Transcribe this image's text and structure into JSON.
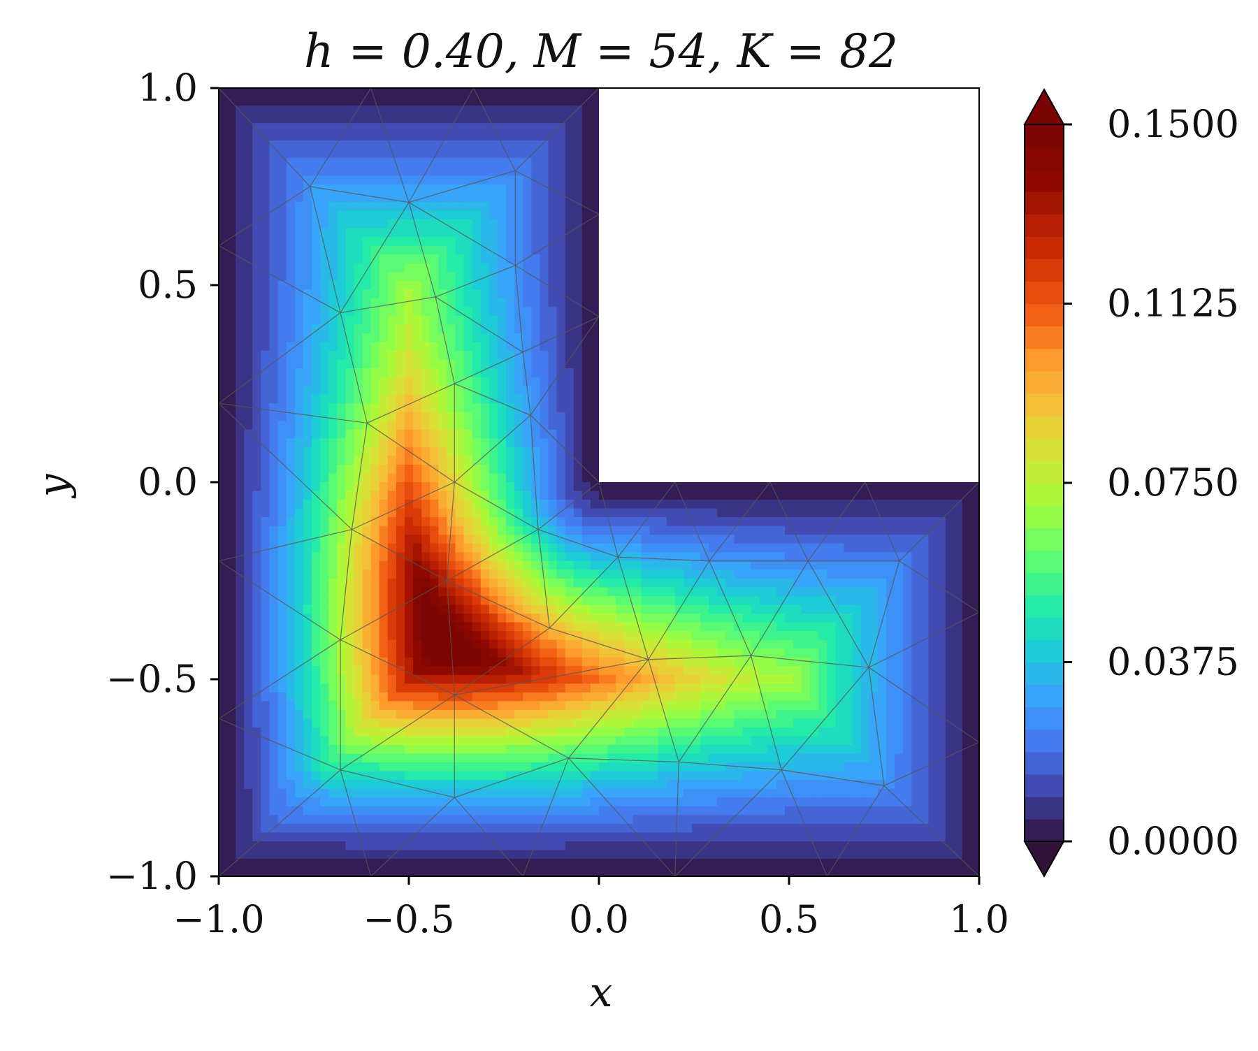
{
  "chart_data": {
    "type": "heatmap",
    "subtype": "tricontourf on triangulated L-shaped domain",
    "title": "h = 0.40, M = 54, K = 82",
    "xlabel": "x",
    "ylabel": "y",
    "xlim": [
      -1.0,
      1.0
    ],
    "ylim": [
      -1.0,
      1.0
    ],
    "xticks": [
      -1.0,
      -0.5,
      0.0,
      0.5,
      1.0
    ],
    "yticks": [
      -1.0,
      -0.5,
      0.0,
      0.5,
      1.0
    ],
    "xtick_labels": [
      "−1.0",
      "−0.5",
      "0.0",
      "0.5",
      "1.0"
    ],
    "ytick_labels": [
      "−1.0",
      "−0.5",
      "0.0",
      "0.5",
      "1.0"
    ],
    "domain_polygon": [
      [
        -1,
        -1
      ],
      [
        1,
        -1
      ],
      [
        1,
        0
      ],
      [
        0,
        0
      ],
      [
        0,
        1
      ],
      [
        -1,
        1
      ]
    ],
    "colormap": "turbo",
    "colorbar": {
      "range": [
        0.0,
        0.15
      ],
      "extend": "both",
      "levels": 32,
      "ticks": [
        0.0,
        0.0375,
        0.075,
        0.1125,
        0.15
      ],
      "tick_labels": [
        "0.0000",
        "0.0375",
        "0.0750",
        "0.1125",
        "0.1500"
      ]
    },
    "peak_value": 0.15,
    "peak_location": [
      -0.38,
      -0.32
    ],
    "boundary_value": 0.0,
    "grid": false,
    "mesh_overlay": true
  },
  "colors": {
    "mesh_lines": "#555555",
    "frame": "#000000",
    "cmap_low": "#30123b",
    "cmap_high": "#7a0403"
  }
}
